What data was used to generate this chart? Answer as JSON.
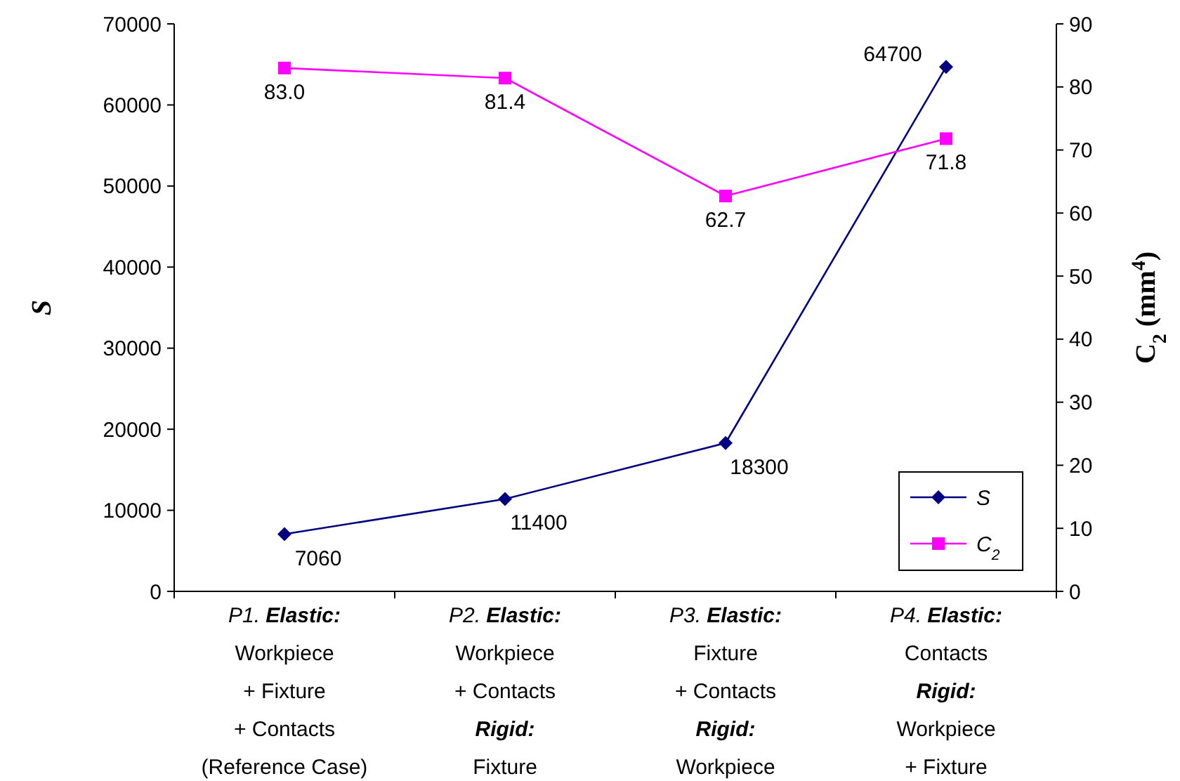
{
  "chart_data": {
    "type": "line",
    "ylabel": "S",
    "y2label": "C$_{2}$ (mm$^{4}$)",
    "categories": [
      "P1. Elastic:\nWorkpiece\n+ Fixture\n+ Contacts\n(Reference Case)",
      "P2. Elastic:\nWorkpiece\n+ Contacts\nRigid:\nFixture",
      "P3. Elastic:\nFixture\n+ Contacts\nRigid:\nWorkpiece",
      "P4. Elastic:\nContacts\nRigid:\nWorkpiece\n+ Fixture"
    ],
    "series": [
      {
        "name": "S",
        "color": "#000080",
        "marker": "diamond",
        "values": [
          7060,
          11400,
          18300,
          64700
        ],
        "value_labels": [
          "7060",
          "11400",
          "18300",
          "64700"
        ]
      },
      {
        "name": "C$_{2}$",
        "color": "#ff00ff",
        "marker": "square",
        "axis": "y2",
        "values": [
          83.0,
          81.4,
          62.7,
          71.8
        ],
        "value_labels": [
          "83.0",
          "81.4",
          "62.7",
          "71.8"
        ]
      }
    ],
    "ylim": [
      0,
      70000
    ],
    "yticks": [
      0,
      10000,
      20000,
      30000,
      40000,
      50000,
      60000,
      70000
    ],
    "y2lim": [
      0,
      90
    ],
    "y2ticks": [
      0,
      10,
      20,
      30,
      40,
      50,
      60,
      70,
      80,
      90
    ],
    "legend": "bottom right",
    "grid": false
  }
}
